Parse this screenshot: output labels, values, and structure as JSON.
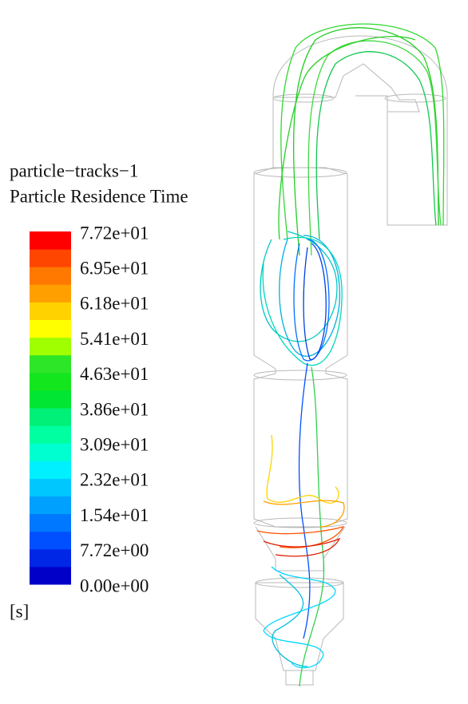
{
  "legend": {
    "title": "particle−tracks−1",
    "subtitle": "Particle Residence Time",
    "tick_labels": [
      "7.72e+01",
      "6.95e+01",
      "6.18e+01",
      "5.41e+01",
      "4.63e+01",
      "3.86e+01",
      "3.09e+01",
      "2.32e+01",
      "1.54e+01",
      "7.72e+00",
      "0.00e+00"
    ],
    "unit": "[s]",
    "band_colors": [
      "#0000c8",
      "#0026e6",
      "#0050ff",
      "#0078ff",
      "#00a0ff",
      "#00c8ff",
      "#00f0ff",
      "#00ffd0",
      "#00ffa0",
      "#00f078",
      "#00e632",
      "#14e61e",
      "#2ee628",
      "#a0ff00",
      "#ffff00",
      "#ffd200",
      "#ffa000",
      "#ff7800",
      "#ff4600",
      "#ff0000"
    ]
  }
}
